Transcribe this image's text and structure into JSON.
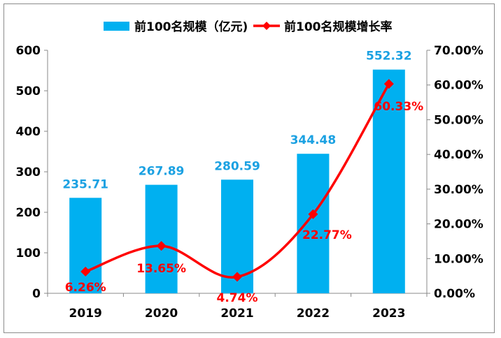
{
  "chart_data": {
    "type": "bar+line",
    "categories": [
      "2019",
      "2020",
      "2021",
      "2022",
      "2023"
    ],
    "series": [
      {
        "name": "前100名规模（亿元)",
        "type": "bar",
        "axis": "left",
        "values": [
          235.71,
          267.89,
          280.59,
          344.48,
          552.32
        ],
        "labels": [
          "235.71",
          "267.89",
          "280.59",
          "344.48",
          "552.32"
        ],
        "color": "#00B0F0",
        "label_color": "#1BA1E2"
      },
      {
        "name": "前100名规模增长率",
        "type": "line",
        "axis": "right",
        "smooth": true,
        "marker": "diamond",
        "values": [
          6.26,
          13.65,
          4.74,
          22.77,
          60.33
        ],
        "labels": [
          "6.26%",
          "13.65%",
          "4.74%",
          "22.77%",
          "60.33%"
        ],
        "color": "#FF0000"
      }
    ],
    "y_left": {
      "range": [
        0,
        600
      ],
      "ticks": [
        "0",
        "100",
        "200",
        "300",
        "400",
        "500",
        "600"
      ]
    },
    "y_right": {
      "range": [
        0,
        70
      ],
      "ticks": [
        "0.00%",
        "10.00%",
        "20.00%",
        "30.00%",
        "40.00%",
        "50.00%",
        "60.00%",
        "70.00%"
      ]
    },
    "grid": false,
    "legend": "top"
  }
}
